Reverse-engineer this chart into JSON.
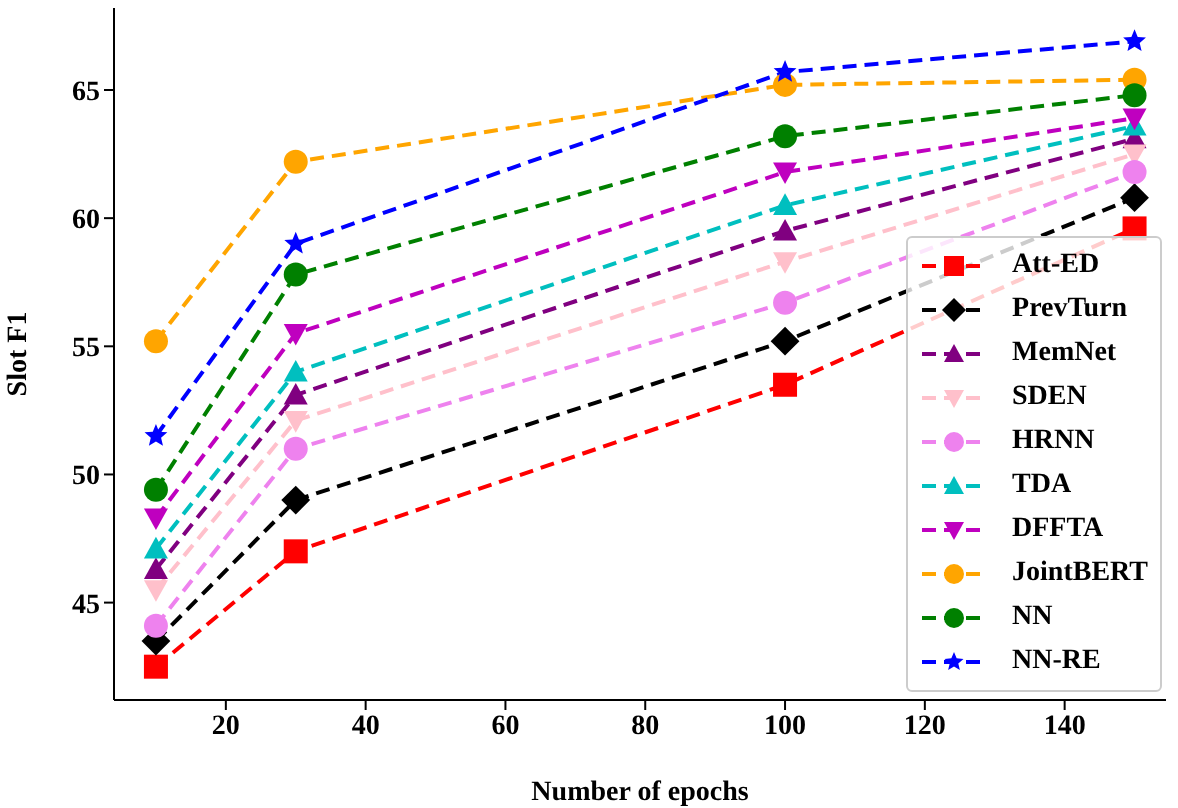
{
  "chart_data": {
    "type": "line",
    "xlabel": "Number of epochs",
    "ylabel": "Slot F1",
    "x": [
      10,
      30,
      100,
      150
    ],
    "xlim": [
      4,
      154.5
    ],
    "xticks": [
      20,
      40,
      60,
      80,
      100,
      120,
      140
    ],
    "ylim": [
      41.2,
      68.2
    ],
    "yticks": [
      45,
      50,
      55,
      60,
      65
    ],
    "grid": false,
    "legend": "bottom right",
    "line_style": "dashed",
    "series": [
      {
        "name": "Att-ED",
        "color": "#ff0000",
        "marker": "square",
        "values": [
          42.5,
          47.0,
          53.5,
          59.6
        ]
      },
      {
        "name": "PrevTurn",
        "color": "#000000",
        "marker": "diamond",
        "values": [
          43.5,
          49.0,
          55.2,
          60.8
        ]
      },
      {
        "name": "MemNet",
        "color": "#800080",
        "marker": "triangle",
        "values": [
          46.3,
          53.1,
          59.5,
          63.1
        ]
      },
      {
        "name": "SDEN",
        "color": "#ffc0cb",
        "marker": "triangle-down",
        "values": [
          45.5,
          52.1,
          58.3,
          62.5
        ]
      },
      {
        "name": "HRNN",
        "color": "#ee82ee",
        "marker": "circle",
        "values": [
          44.1,
          51.0,
          56.7,
          61.8
        ]
      },
      {
        "name": "TDA",
        "color": "#00bfbf",
        "marker": "triangle",
        "values": [
          47.1,
          54.0,
          60.5,
          63.6
        ]
      },
      {
        "name": "DFFTA",
        "color": "#bf00bf",
        "marker": "triangle-down",
        "values": [
          48.3,
          55.5,
          61.8,
          63.9
        ]
      },
      {
        "name": "JointBERT",
        "color": "#ffa500",
        "marker": "circle",
        "values": [
          55.2,
          62.2,
          65.2,
          65.4
        ]
      },
      {
        "name": "NN",
        "color": "#008000",
        "marker": "circle",
        "values": [
          49.4,
          57.8,
          63.2,
          64.8
        ]
      },
      {
        "name": "NN-RE",
        "color": "#0000ff",
        "marker": "star",
        "values": [
          51.5,
          59.0,
          65.7,
          66.9
        ]
      }
    ]
  }
}
